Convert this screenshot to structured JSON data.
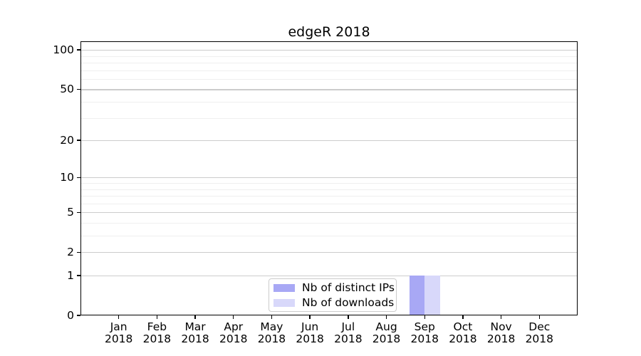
{
  "figure": {
    "title": "edgeR 2018"
  },
  "legend": {
    "items": [
      {
        "label": "Nb of distinct IPs",
        "color": "#a8a8f5"
      },
      {
        "label": "Nb of downloads",
        "color": "#d8d8fa"
      }
    ]
  },
  "chart_data": {
    "type": "bar",
    "title": "edgeR 2018",
    "categories": [
      "Jan 2018",
      "Feb 2018",
      "Mar 2018",
      "Apr 2018",
      "May 2018",
      "Jun 2018",
      "Jul 2018",
      "Aug 2018",
      "Sep 2018",
      "Oct 2018",
      "Nov 2018",
      "Dec 2018"
    ],
    "series": [
      {
        "name": "Nb of distinct IPs",
        "color": "#a8a8f5",
        "values": [
          0,
          0,
          0,
          0,
          0,
          0,
          0,
          0,
          1,
          0,
          0,
          0
        ]
      },
      {
        "name": "Nb of downloads",
        "color": "#d8d8fa",
        "values": [
          0,
          0,
          0,
          0,
          0,
          0,
          0,
          0,
          1,
          0,
          0,
          0
        ]
      }
    ],
    "xlabel": "",
    "ylabel": "",
    "y_scale": "log1p",
    "y_ticks": [
      0,
      1,
      2,
      5,
      10,
      20,
      50,
      100
    ],
    "y_minor_gridlines": [
      3,
      4,
      6,
      7,
      8,
      9,
      30,
      40,
      60,
      70,
      80,
      90
    ],
    "ylim": [
      0,
      116
    ],
    "grid": true,
    "legend_position": "lower center"
  },
  "colors": {
    "background": "#ffffff",
    "axis": "#000000",
    "major_grid": "#cccccc",
    "minor_grid": "#efefef",
    "legend_border": "#cccccc",
    "text": "#000000"
  }
}
